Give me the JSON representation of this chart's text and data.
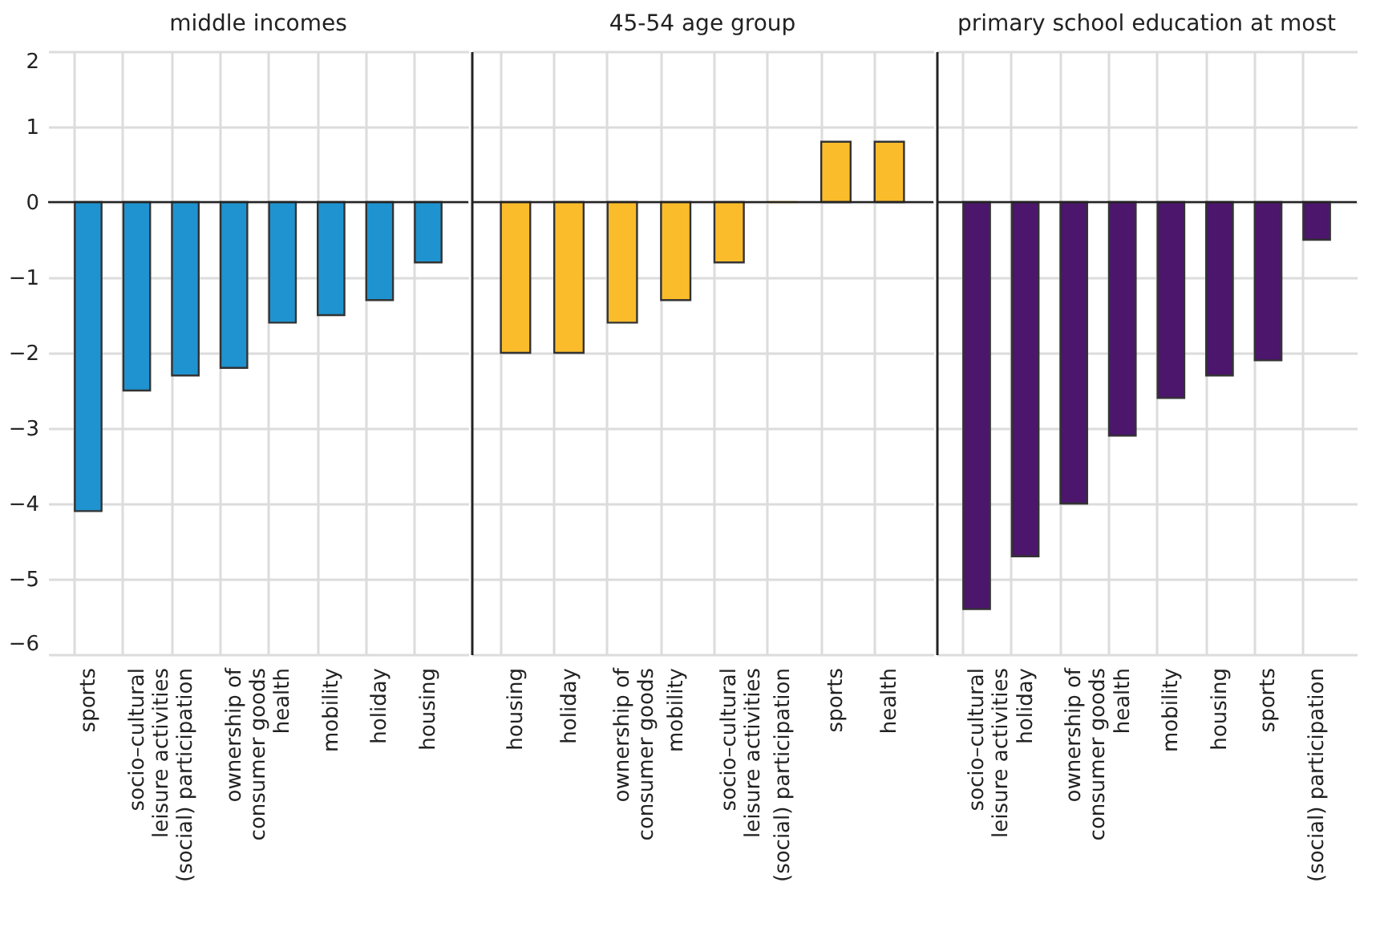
{
  "chart_data": [
    {
      "type": "bar",
      "title": "middle incomes",
      "categories": [
        "sports",
        "socio–cultural leisure activities",
        "(social) participation",
        "ownership of consumer goods",
        "health",
        "mobility",
        "holiday",
        "housing"
      ],
      "values": [
        -4.1,
        -2.5,
        -2.3,
        -2.2,
        -1.6,
        -1.5,
        -1.3,
        -0.8
      ],
      "color": "#1f93d0",
      "ylim": [
        -6,
        2
      ],
      "yticks": [
        -6,
        -5,
        -4,
        -3,
        -2,
        -1,
        0,
        1,
        2
      ],
      "grid": true,
      "ref_lines": [
        {
          "axis": "y",
          "value": 0
        }
      ]
    },
    {
      "type": "bar",
      "title": "45-54 age group",
      "categories": [
        "housing",
        "holiday",
        "ownership of consumer goods",
        "mobility",
        "socio–cultural leisure activities",
        "(social) participation",
        "sports",
        "health"
      ],
      "values": [
        -2,
        -2,
        -1.6,
        -1.3,
        -0.8,
        0,
        0.8,
        0.8
      ],
      "color": "#fbbc2c",
      "ylim": [
        -6,
        2
      ],
      "yticks": [
        -6,
        -5,
        -4,
        -3,
        -2,
        -1,
        0,
        1,
        2
      ],
      "grid": true,
      "tick_labels": "x",
      "ref_lines": [
        {
          "axis": "y",
          "value": 0
        }
      ]
    },
    {
      "type": "bar",
      "title": "primary school education at most",
      "categories": [
        "socio–cultural leisure activities",
        "holiday",
        "ownership of consumer goods",
        "health",
        "mobility",
        "housing",
        "sports",
        "(social) participation"
      ],
      "values": [
        -5.4,
        -4.7,
        -4.0,
        -3.1,
        -2.6,
        -2.3,
        -2.1,
        -0.5
      ],
      "color": "#4b166b",
      "ylim": [
        -6,
        2
      ],
      "yticks": [
        -6,
        -5,
        -4,
        -3,
        -2,
        -1,
        0,
        1,
        2
      ],
      "grid": true,
      "tick_labels": "x",
      "ref_lines": [
        {
          "axis": "y",
          "value": 0
        }
      ]
    }
  ]
}
